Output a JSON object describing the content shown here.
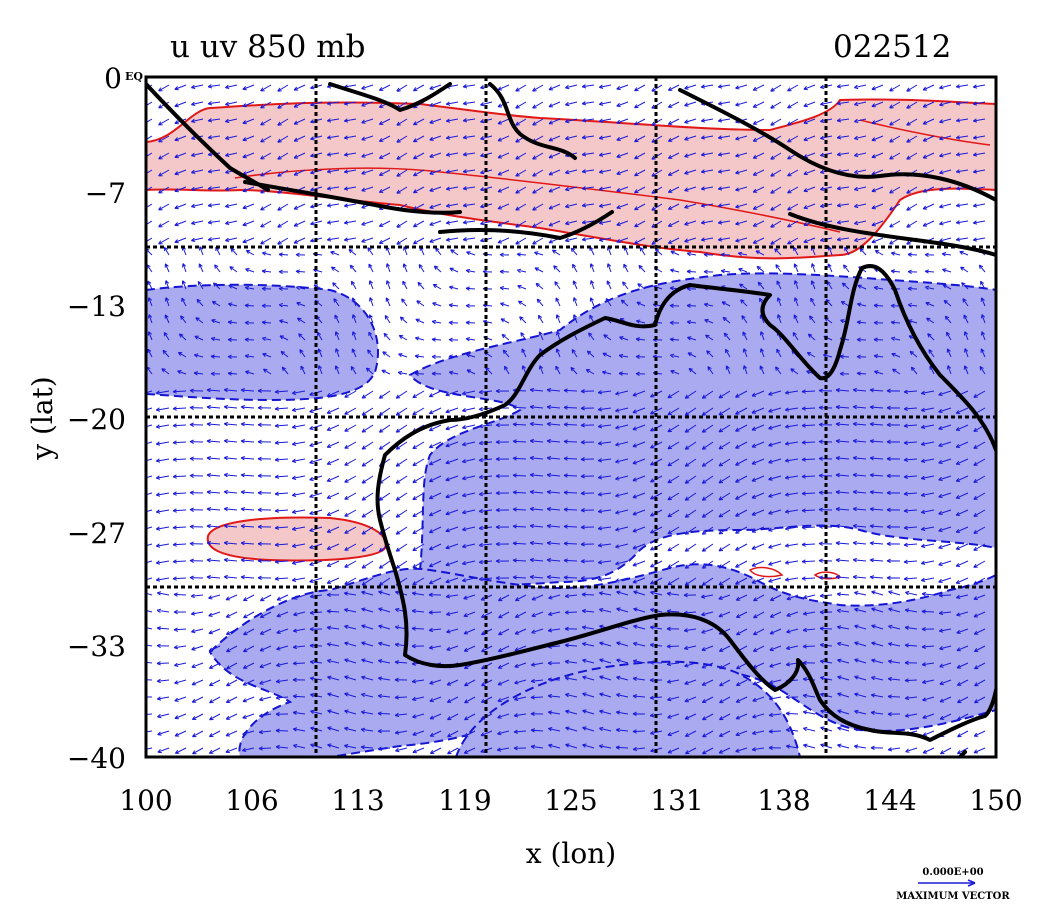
{
  "title": "u  uv  850  mb",
  "date": "022512",
  "origin_label": "0",
  "origin_tag": "EQ",
  "x_axis": {
    "label": "x  (lon)",
    "ticks": [
      "100",
      "106",
      "113",
      "119",
      "125",
      "131",
      "138",
      "144",
      "150"
    ],
    "range": [
      100,
      150
    ]
  },
  "y_axis": {
    "label": "y  (lat)",
    "ticks": [
      "−7",
      "−13",
      "−20",
      "−27",
      "−33",
      "−40"
    ],
    "range": [
      -40,
      0
    ]
  },
  "vector_key": {
    "magnitude": "0.000E+00",
    "label": "MAXIMUM VECTOR"
  },
  "colors": {
    "positive_fill": "#f4c8c8",
    "positive_contour": "#e01818",
    "negative_fill": "#aaaaf0",
    "negative_contour": "#1414d2",
    "vectors": "#1a1ad8",
    "coastline": "#000000",
    "grid": "#000000"
  },
  "grid_lon": [
    110,
    120,
    130,
    140
  ],
  "grid_lat": [
    -10,
    -20,
    -30
  ]
}
